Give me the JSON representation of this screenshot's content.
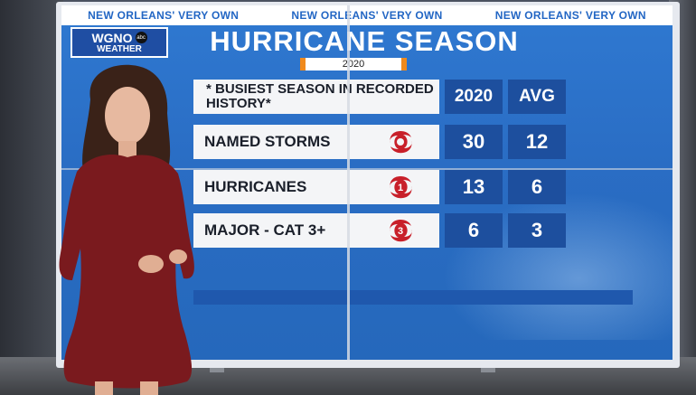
{
  "graphic": {
    "taglines": [
      "NEW ORLEANS' VERY OWN",
      "NEW ORLEANS' VERY OWN",
      "NEW ORLEANS' VERY OWN"
    ],
    "logo": {
      "station": "WGNO",
      "badge": "abc",
      "sub": "WEATHER"
    },
    "title": "HURRICANE SEASON",
    "year": "2020",
    "header": {
      "note": "* BUSIEST SEASON IN RECORDED HISTORY*",
      "col1": "2020",
      "col2": "AVG"
    },
    "rows": [
      {
        "label": "NAMED STORMS",
        "icon_number": "",
        "v2020": "30",
        "avg": "12"
      },
      {
        "label": "HURRICANES",
        "icon_number": "1",
        "v2020": "13",
        "avg": "6"
      },
      {
        "label": "MAJOR - CAT 3+",
        "icon_number": "3",
        "v2020": "6",
        "avg": "3"
      }
    ]
  },
  "colors": {
    "screen_blue": "#2a6dc4",
    "cell_blue": "#1d4f9e",
    "accent_orange": "#f08a1d",
    "icon_red": "#c8202a"
  },
  "icons": [
    "hurricane-icon",
    "hurricane-cat1-icon",
    "hurricane-cat3-icon"
  ]
}
